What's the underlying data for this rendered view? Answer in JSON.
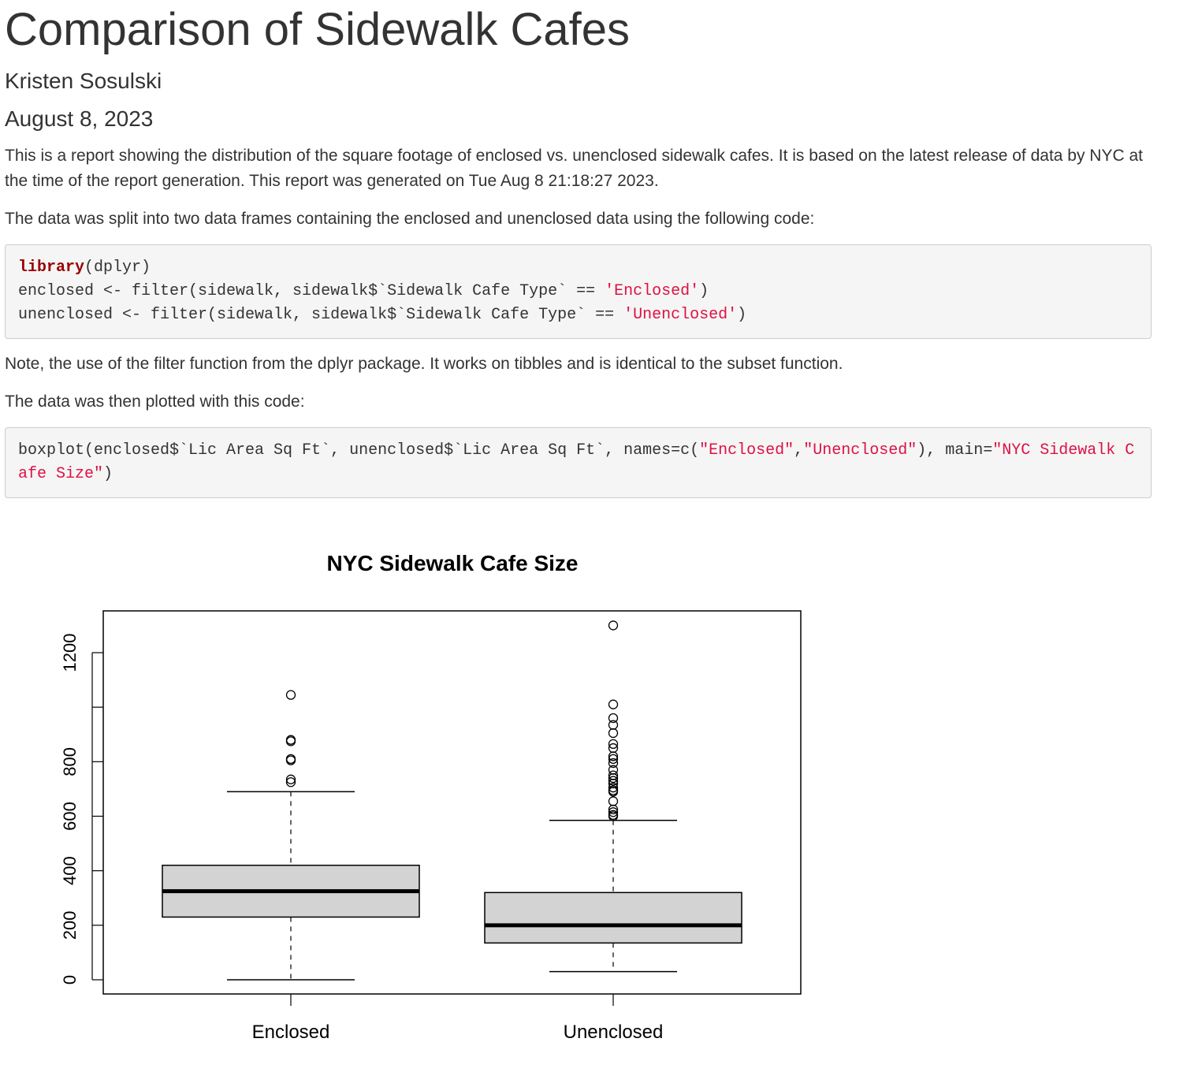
{
  "report": {
    "title": "Comparison of Sidewalk Cafes",
    "author": "Kristen Sosulski",
    "date": "August 8, 2023",
    "intro": "This is a report showing the distribution of the square footage of enclosed vs. unenclosed sidewalk cafes. It is based on the latest release of data by NYC at the time of the report generation. This report was generated on Tue Aug 8 21:18:27 2023.",
    "split_text": "The data was split into two data frames containing the enclosed and unenclosed data using the following code:",
    "note_text": "Note, the use of the filter function from the dplyr package. It works on tibbles and is identical to the subset function.",
    "plotted_text": "The data was then plotted with this code:"
  },
  "code1": {
    "line1_kw": "library",
    "line1_rest": "(dplyr)",
    "line2_pre": "enclosed <- filter(sidewalk, sidewalk$`Sidewalk Cafe Type` == ",
    "line2_str": "'Enclosed'",
    "line2_post": ")",
    "line3_pre": "unenclosed <- filter(sidewalk, sidewalk$`Sidewalk Cafe Type` == ",
    "line3_str": "'Unenclosed'",
    "line3_post": ")"
  },
  "code2": {
    "part1": "boxplot(enclosed$`Lic Area Sq Ft`, unenclosed$`Lic Area Sq Ft`, names=c(",
    "str1": "\"Enclosed\"",
    "comma": ",",
    "str2": "\"Unenclosed\"",
    "part2": "), main=",
    "str3": "\"NYC Sidewalk Cafe Size\"",
    "part3": ")"
  },
  "chart_data": {
    "type": "boxplot",
    "title": "NYC Sidewalk Cafe Size",
    "xlabel": "",
    "ylabel": "",
    "ylim": [
      -50,
      1360
    ],
    "y_ticks": [
      0,
      200,
      400,
      600,
      800,
      1200
    ],
    "y_tick_marks": [
      0,
      200,
      400,
      600,
      800,
      1000,
      1200
    ],
    "categories": [
      "Enclosed",
      "Unenclosed"
    ],
    "boxes": [
      {
        "name": "Enclosed",
        "whisker_low": 0,
        "q1": 230,
        "median": 325,
        "q3": 420,
        "whisker_high": 690,
        "outliers": [
          1045,
          880,
          875,
          810,
          805,
          735,
          725
        ]
      },
      {
        "name": "Unenclosed",
        "whisker_low": 30,
        "q1": 135,
        "median": 200,
        "q3": 320,
        "whisker_high": 585,
        "outliers": [
          1300,
          1010,
          960,
          935,
          905,
          865,
          850,
          820,
          810,
          795,
          770,
          750,
          740,
          730,
          720,
          705,
          695,
          690,
          655,
          625,
          615,
          605,
          600
        ]
      }
    ],
    "colors": {
      "box_fill": "#d3d3d3",
      "stroke": "#000000"
    }
  }
}
